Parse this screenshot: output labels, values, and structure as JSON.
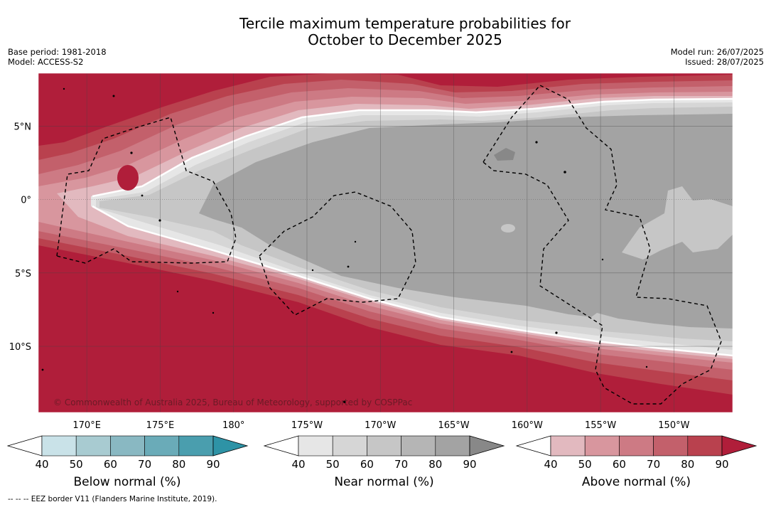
{
  "title": {
    "line1": "Tercile maximum temperature probabilities for",
    "line2": "October to December 2025"
  },
  "meta": {
    "base_period": "Base period: 1981-2018",
    "model": "Model: ACCESS-S2",
    "model_run": "Model run: 26/07/2025",
    "issued": "Issued: 28/07/2025"
  },
  "map": {
    "lat_labels": [
      "5°N",
      "0°",
      "5°S",
      "10°S"
    ],
    "lon_labels": [
      "170°E",
      "175°E",
      "180°",
      "175°W",
      "170°W",
      "165°W",
      "160°W",
      "155°W",
      "150°W"
    ],
    "lat_values": [
      5,
      0,
      -5,
      -10
    ],
    "lon_values": [
      170,
      175,
      180,
      185,
      190,
      195,
      200,
      205,
      210
    ],
    "extent": {
      "lon_min": 166.7,
      "lon_max": 214,
      "lat_min": -14.5,
      "lat_max": 8.6
    },
    "copyright": "© Commonwealth of Australia 2025, Bureau of Meteorology, supported by COSPPac"
  },
  "colorbars": [
    {
      "label": "Below normal (%)",
      "ticks": [
        "40",
        "50",
        "60",
        "70",
        "80",
        "90"
      ],
      "colors": [
        "#c9e2e8",
        "#a8cbd1",
        "#89b8c2",
        "#6aabb8",
        "#4a9eae",
        "#2e93a6"
      ]
    },
    {
      "label": "Near normal (%)",
      "ticks": [
        "40",
        "50",
        "60",
        "70",
        "80",
        "90"
      ],
      "colors": [
        "#e6e6e6",
        "#d6d6d6",
        "#c6c6c6",
        "#b5b5b5",
        "#a3a3a3",
        "#888888"
      ]
    },
    {
      "label": "Above normal (%)",
      "ticks": [
        "40",
        "50",
        "60",
        "70",
        "80",
        "90"
      ],
      "colors": [
        "#e2b9bf",
        "#d8969e",
        "#cd7a84",
        "#c3606b",
        "#b9414e",
        "#b01e3a"
      ]
    }
  ],
  "footnote": "--  --  -- EEZ border V11 (Flanders Marine Institute, 2019)."
}
